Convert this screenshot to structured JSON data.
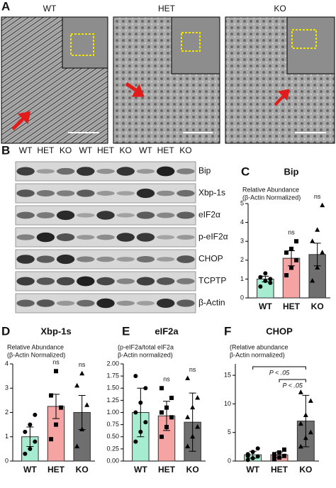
{
  "panel_a": {
    "letter": "A",
    "labels": [
      "WT",
      "HET",
      "KO"
    ]
  },
  "panel_b": {
    "letter": "B",
    "lanes": [
      "WT",
      "HET",
      "KO",
      "WT",
      "HET",
      "KO",
      "WT",
      "HET",
      "KO"
    ],
    "bands": [
      "Bip",
      "Xbp-1s",
      "eIF2α",
      "p-eIF2α",
      "CHOP",
      "TCPTP",
      "β-Actin"
    ]
  },
  "chart_data": [
    {
      "type": "bar",
      "panel": "C",
      "title": "Bip",
      "subtitle": [
        "Relative Abundance",
        "(β-Actin Normalized)"
      ],
      "categories": [
        "WT",
        "HET",
        "KO"
      ],
      "values": [
        1.0,
        2.1,
        2.3
      ],
      "errors": [
        0.15,
        0.4,
        0.6
      ],
      "colors": [
        "#a6ecd0",
        "#f5a3a3",
        "#6f6f6f"
      ],
      "markers": [
        "circle",
        "square",
        "triangle"
      ],
      "points": [
        [
          0.6,
          0.9,
          1.0,
          1.1,
          1.3,
          0.8
        ],
        [
          1.2,
          1.6,
          2.0,
          2.4,
          2.6,
          3.0
        ],
        [
          0.9,
          1.6,
          2.4,
          3.0,
          3.6,
          4.9
        ]
      ],
      "annotations": [
        {
          "text": "ns",
          "at": "HET"
        },
        {
          "text": "ns",
          "at": "KO"
        }
      ],
      "ylim": [
        0,
        5
      ],
      "yticks": [
        0,
        1,
        2,
        3,
        4,
        5
      ]
    },
    {
      "type": "bar",
      "panel": "D",
      "title": "Xbp-1s",
      "subtitle": [
        "Relative Abundance",
        "(β-Actin Normalized)"
      ],
      "categories": [
        "WT",
        "HET",
        "KO"
      ],
      "values": [
        1.0,
        2.25,
        2.0
      ],
      "errors": [
        0.4,
        0.5,
        0.7
      ],
      "colors": [
        "#a6ecd0",
        "#f5a3a3",
        "#6f6f6f"
      ],
      "markers": [
        "circle",
        "square",
        "triangle"
      ],
      "points": [
        [
          0.3,
          0.5,
          0.8,
          1.2,
          1.5,
          1.9
        ],
        [
          0.9,
          1.5,
          2.2,
          2.7,
          3.7
        ],
        [
          0.6,
          1.3,
          2.3,
          3.1,
          3.6
        ]
      ],
      "annotations": [
        {
          "text": "ns",
          "at": "HET"
        },
        {
          "text": "ns",
          "at": "KO"
        }
      ],
      "ylim": [
        0,
        4
      ],
      "yticks": [
        0,
        1,
        2,
        3,
        4
      ]
    },
    {
      "type": "bar",
      "panel": "E",
      "title": "eIF2a",
      "subtitle": [
        "(p-eIF2a/total eIF2a",
        "β-Actin normalized)"
      ],
      "categories": [
        "WT",
        "HET",
        "KO"
      ],
      "values": [
        1.0,
        0.93,
        0.8
      ],
      "errors": [
        0.5,
        0.3,
        0.6
      ],
      "colors": [
        "#a6ecd0",
        "#f5a3a3",
        "#6f6f6f"
      ],
      "markers": [
        "circle",
        "square",
        "triangle"
      ],
      "points": [
        [
          0.4,
          0.6,
          0.8,
          1.0,
          1.2,
          1.5,
          1.75
        ],
        [
          0.5,
          0.7,
          0.9,
          1.0,
          1.1,
          1.3,
          1.5
        ],
        [
          0.3,
          0.5,
          0.7,
          0.9,
          1.1,
          1.3,
          1.7
        ]
      ],
      "annotations": [
        {
          "text": "ns",
          "at": "HET"
        },
        {
          "text": "ns",
          "at": "KO"
        }
      ],
      "ylim": [
        0,
        2
      ],
      "yticks": [
        {
          "value": 0,
          "label": "0.00"
        },
        {
          "value": 0.25,
          "label": "0.25"
        },
        {
          "value": 0.5,
          "label": "0.50"
        },
        {
          "value": 0.75,
          "label": "0.75"
        },
        {
          "value": 1,
          "label": "1.00"
        },
        {
          "value": 1.25,
          "label": "1.25"
        },
        {
          "value": 1.5,
          "label": "1.50"
        },
        {
          "value": 1.75,
          "label": "1.75"
        },
        {
          "value": 2,
          "label": "2.00"
        }
      ]
    },
    {
      "type": "bar",
      "panel": "F",
      "title": "CHOP",
      "subtitle": [
        "(Relative abundance",
        "β-Actin normalized)"
      ],
      "categories": [
        "WT",
        "HET",
        "KO"
      ],
      "values": [
        1.1,
        1.1,
        7.0
      ],
      "errors": [
        0.6,
        0.5,
        4.5
      ],
      "colors": [
        "#a6ecd0",
        "#f5a3a3",
        "#6f6f6f"
      ],
      "markers": [
        "circle",
        "square",
        "triangle"
      ],
      "points": [
        [
          0.2,
          0.5,
          0.8,
          1.2,
          1.6,
          2.2,
          0.9
        ],
        [
          0.3,
          0.6,
          0.9,
          1.2,
          1.5,
          2.0,
          0.8
        ],
        [
          2.5,
          4.0,
          5.0,
          6.5,
          8.0,
          10.5,
          12.0
        ]
      ],
      "brackets": [
        {
          "text": "P < .05",
          "from": "WT",
          "to": "KO"
        },
        {
          "text": "P < .05",
          "from": "HET",
          "to": "KO"
        }
      ],
      "ylim": [
        0,
        17
      ],
      "yticks": [
        0,
        5,
        10,
        15
      ]
    }
  ]
}
